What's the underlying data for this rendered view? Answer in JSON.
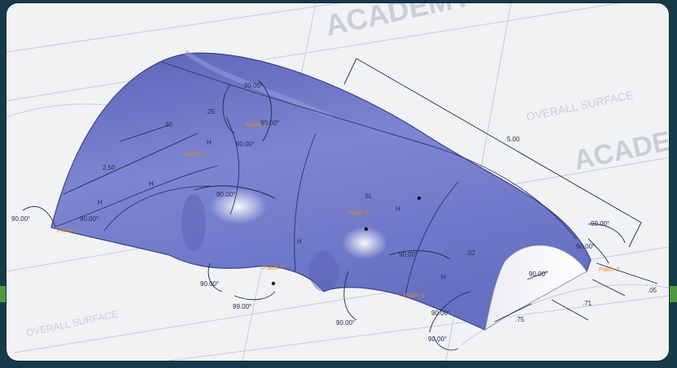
{
  "watermark": {
    "brand": "ACADEMY",
    "caption": "OVERALL SURFACE"
  },
  "colors": {
    "surface": "#6f79c9",
    "annotation": "#1e2a4d",
    "highlight": "#e48a1a",
    "background": "#f1f2f4"
  },
  "dimensions": {
    "overall_length": "5.00",
    "side_length": "2.50",
    "width_front": ".71",
    "offset_front": ".05",
    "length_front": ".75",
    "small_radius": ".02",
    "left_top": ".50",
    "radius_mid": ".25"
  },
  "angles": {
    "a_top": "90.00°",
    "a_top_fh": "90.00°",
    "a_top_lower": "90.00°",
    "a_mid": "90.00°",
    "a_mid_right": "90.00°",
    "a_left": "90.00°",
    "a_bottom_left": "90.00°",
    "a_bottom_mid": "99.00°",
    "a_bottom_right": "90.00°",
    "a_front1": "90.00°",
    "a_front2": "90.00°",
    "a_front3": "90.00°",
    "a_right1": "99.00°",
    "a_right2": "90.00°",
    "a_left_small": "90.00°"
  },
  "constraints": {
    "h": "H",
    "symbol": "SL"
  },
  "patches": {
    "p1": "Patch 1",
    "p2": "Patch 2",
    "p3": "Patch 3",
    "p4": "Patch 4",
    "p5": "Patch 5",
    "p6": "Patch 6",
    "p7": "Patch 7"
  }
}
